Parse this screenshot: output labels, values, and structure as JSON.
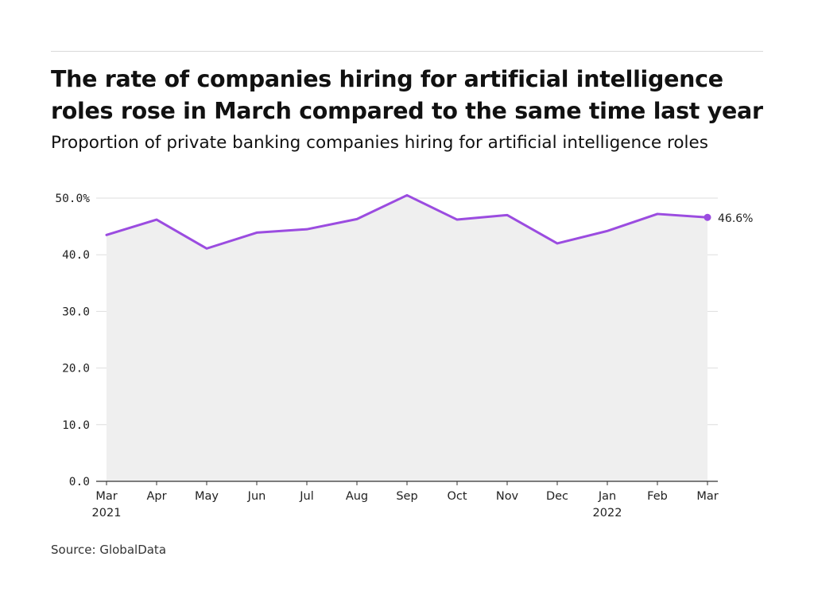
{
  "title": "The rate of companies hiring for artificial intelligence roles rose in March compared to the same time last year",
  "subtitle": "Proportion of private banking companies hiring for artificial intelligence roles",
  "source": "Source: GlobalData",
  "colors": {
    "line": "#9b4ce0",
    "area": "#efefef",
    "grid": "#dedede",
    "axis": "#333333"
  },
  "chart_data": {
    "type": "line",
    "title": "The rate of companies hiring for artificial intelligence roles rose in March compared to the same time last year",
    "subtitle": "Proportion of private banking companies hiring for artificial intelligence roles",
    "xlabel": "",
    "ylabel": "",
    "ylim": [
      0,
      50
    ],
    "yticks": [
      "50.0%",
      "40.0",
      "30.0",
      "20.0",
      "10.0",
      "0.0"
    ],
    "grid": true,
    "legend": "none",
    "categories": [
      {
        "label": "Mar",
        "sub": "2021"
      },
      {
        "label": "Apr",
        "sub": ""
      },
      {
        "label": "May",
        "sub": ""
      },
      {
        "label": "Jun",
        "sub": ""
      },
      {
        "label": "Jul",
        "sub": ""
      },
      {
        "label": "Aug",
        "sub": ""
      },
      {
        "label": "Sep",
        "sub": ""
      },
      {
        "label": "Oct",
        "sub": ""
      },
      {
        "label": "Nov",
        "sub": ""
      },
      {
        "label": "Dec",
        "sub": ""
      },
      {
        "label": "Jan",
        "sub": "2022"
      },
      {
        "label": "Feb",
        "sub": ""
      },
      {
        "label": "Mar",
        "sub": ""
      }
    ],
    "series": [
      {
        "values": [
          43.5,
          46.2,
          41.1,
          43.9,
          44.5,
          46.3,
          50.5,
          46.2,
          47.0,
          42.0,
          44.2,
          47.2,
          46.6
        ]
      }
    ],
    "end_label": "46.6%"
  }
}
